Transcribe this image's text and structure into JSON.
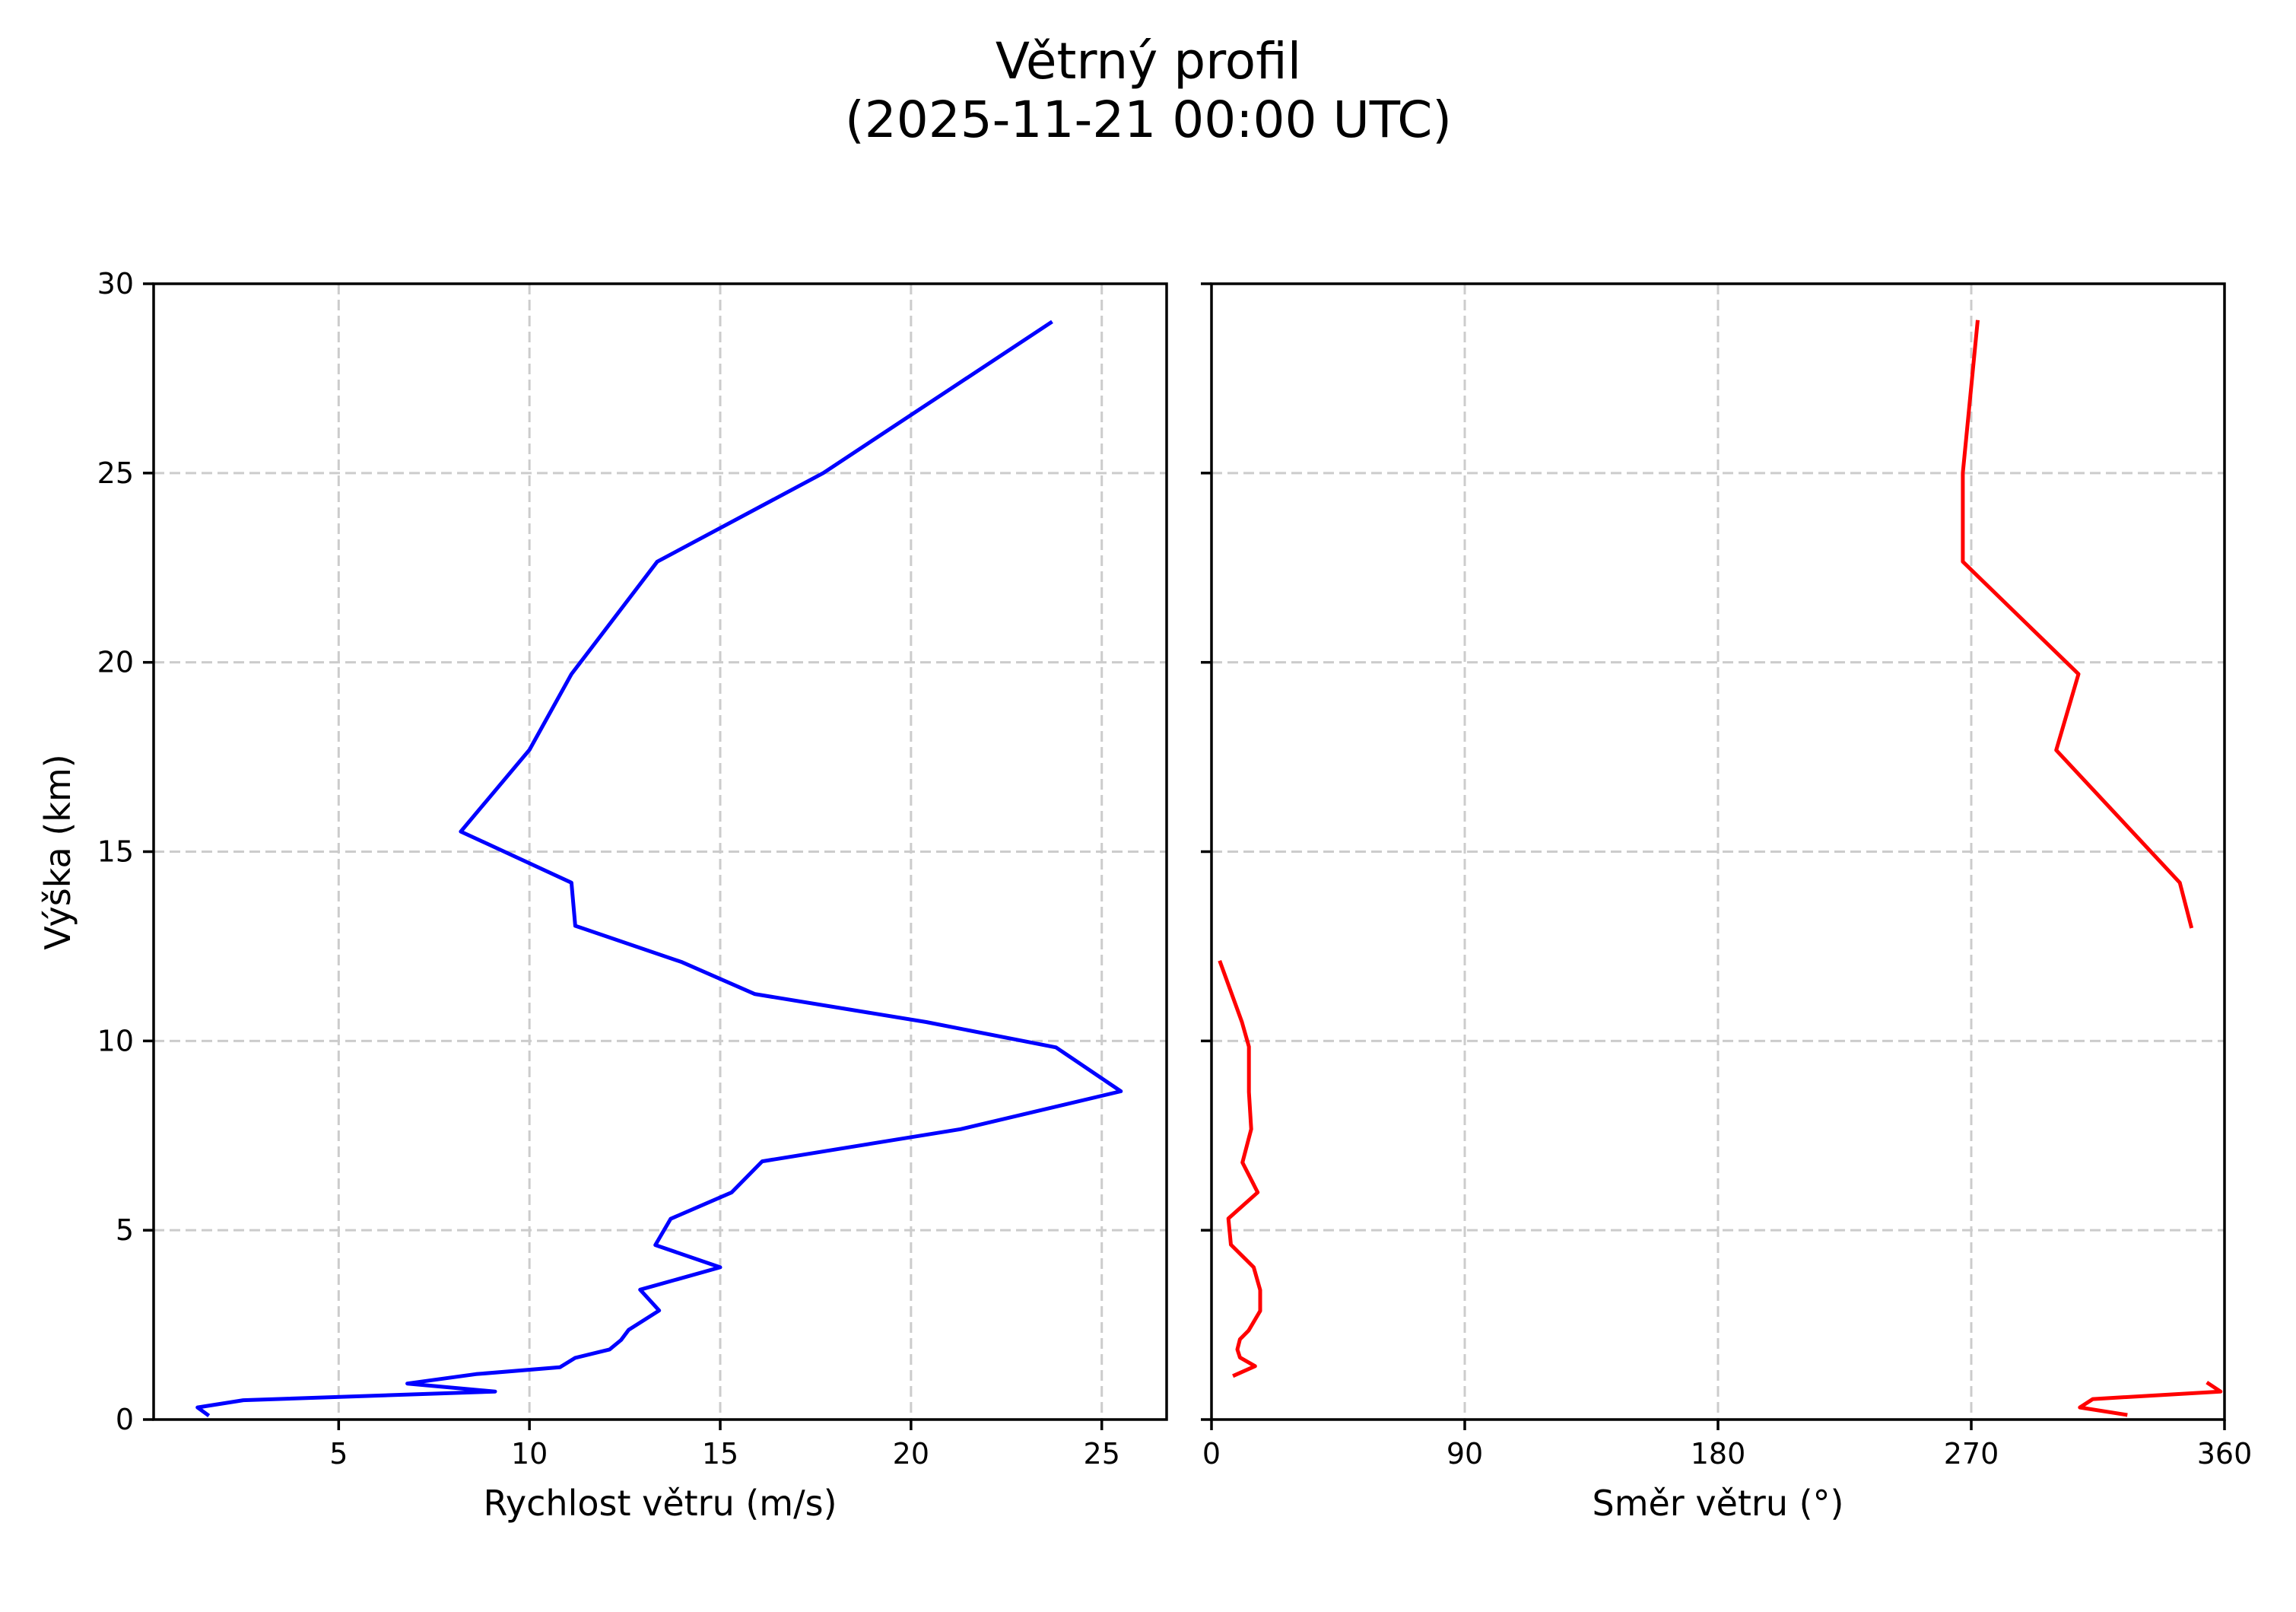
{
  "figure": {
    "title_line1": "Větrný profil",
    "title_line2": "(2025-11-21 00:00 UTC)"
  },
  "chart_data": [
    {
      "type": "line",
      "title": "Větrný profil (2025-11-21 00:00 UTC)",
      "xlabel": "Rychlost větru (m/s)",
      "ylabel": "Výška (km)",
      "xlim": [
        0.15,
        26.7
      ],
      "ylim": [
        0,
        30
      ],
      "xticks": [
        5,
        10,
        15,
        20,
        25
      ],
      "yticks": [
        0,
        5,
        10,
        15,
        20,
        25,
        30
      ],
      "grid": true,
      "series": [
        {
          "name": "Rychlost větru",
          "color": "#0000ff",
          "points": [
            {
              "x": 1.6,
              "y": 0.1
            },
            {
              "x": 1.3,
              "y": 0.32
            },
            {
              "x": 2.5,
              "y": 0.51
            },
            {
              "x": 9.1,
              "y": 0.74
            },
            {
              "x": 6.8,
              "y": 0.95
            },
            {
              "x": 8.6,
              "y": 1.2
            },
            {
              "x": 10.8,
              "y": 1.38
            },
            {
              "x": 11.2,
              "y": 1.63
            },
            {
              "x": 12.1,
              "y": 1.85
            },
            {
              "x": 12.4,
              "y": 2.1
            },
            {
              "x": 12.6,
              "y": 2.37
            },
            {
              "x": 13.4,
              "y": 2.88
            },
            {
              "x": 12.9,
              "y": 3.43
            },
            {
              "x": 15.0,
              "y": 4.02
            },
            {
              "x": 13.3,
              "y": 4.61
            },
            {
              "x": 13.7,
              "y": 5.3
            },
            {
              "x": 15.3,
              "y": 6.0
            },
            {
              "x": 16.1,
              "y": 6.82
            },
            {
              "x": 21.3,
              "y": 7.67
            },
            {
              "x": 25.5,
              "y": 8.67
            },
            {
              "x": 23.8,
              "y": 9.83
            },
            {
              "x": 20.4,
              "y": 10.5
            },
            {
              "x": 15.9,
              "y": 11.24
            },
            {
              "x": 14.0,
              "y": 12.08
            },
            {
              "x": 11.2,
              "y": 13.04
            },
            {
              "x": 11.1,
              "y": 14.18
            },
            {
              "x": 8.2,
              "y": 15.53
            },
            {
              "x": 10.0,
              "y": 17.69
            },
            {
              "x": 11.1,
              "y": 19.69
            },
            {
              "x": 13.35,
              "y": 22.66
            },
            {
              "x": 17.7,
              "y": 25.0
            },
            {
              "x": 23.7,
              "y": 29.0
            }
          ]
        }
      ]
    },
    {
      "type": "line",
      "title": "",
      "xlabel": "Směr větru (°)",
      "ylabel": "",
      "xlim": [
        0,
        360
      ],
      "ylim": [
        0,
        30
      ],
      "xticks": [
        0,
        90,
        180,
        270,
        360
      ],
      "yticks": [
        0,
        5,
        10,
        15,
        20,
        25,
        30
      ],
      "grid": true,
      "series": [
        {
          "name": "Směr větru",
          "color": "#ff0000",
          "segments": [
            [
              {
                "x": 325.5,
                "y": 0.12
              },
              {
                "x": 308.6,
                "y": 0.32
              },
              {
                "x": 313.2,
                "y": 0.54
              },
              {
                "x": 358.6,
                "y": 0.74
              },
              {
                "x": 353.7,
                "y": 0.98
              }
            ],
            [
              {
                "x": 7.6,
                "y": 1.15
              },
              {
                "x": 15.5,
                "y": 1.41
              },
              {
                "x": 10.1,
                "y": 1.64
              },
              {
                "x": 9.2,
                "y": 1.85
              },
              {
                "x": 10.1,
                "y": 2.12
              },
              {
                "x": 13.2,
                "y": 2.35
              },
              {
                "x": 17.3,
                "y": 2.87
              },
              {
                "x": 17.3,
                "y": 3.42
              },
              {
                "x": 15.0,
                "y": 4.02
              },
              {
                "x": 6.9,
                "y": 4.62
              },
              {
                "x": 6.0,
                "y": 5.31
              },
              {
                "x": 16.4,
                "y": 6.0
              },
              {
                "x": 11.0,
                "y": 6.79
              },
              {
                "x": 14.1,
                "y": 7.67
              },
              {
                "x": 13.3,
                "y": 8.65
              },
              {
                "x": 13.3,
                "y": 9.85
              },
              {
                "x": 10.8,
                "y": 10.5
              },
              {
                "x": 2.9,
                "y": 12.12
              }
            ],
            [
              {
                "x": 348.3,
                "y": 12.98
              },
              {
                "x": 344.1,
                "y": 14.18
              },
              {
                "x": 300.2,
                "y": 17.68
              },
              {
                "x": 308.1,
                "y": 19.69
              },
              {
                "x": 267.0,
                "y": 22.66
              },
              {
                "x": 267.0,
                "y": 25.0
              },
              {
                "x": 272.3,
                "y": 29.04
              }
            ]
          ]
        }
      ]
    }
  ]
}
